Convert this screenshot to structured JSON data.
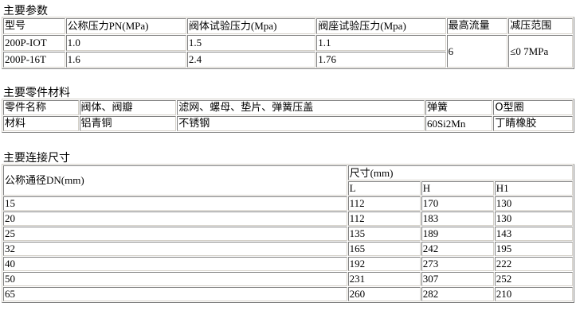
{
  "params": {
    "title": "主要参数",
    "headers": [
      "型号",
      "公称压力PN(MPa)",
      "阀体试验压力(Mpa)",
      "阀座试验压力(Mpa)",
      "最高流量",
      "减压范围"
    ],
    "rows": [
      [
        "200P-IOT",
        "1.0",
        "1.5",
        "1.1"
      ],
      [
        "200P-16T",
        "1.6",
        "2.4",
        "1.76"
      ]
    ],
    "max_flow": "6",
    "range": "≤0 7MPa"
  },
  "materials": {
    "title": "主要零件材料",
    "headers": [
      "零件名称",
      "阀体、阀瓣",
      "滤网、螺母、垫片、弹簧压盖",
      "弹簧",
      "O型圈"
    ],
    "row": [
      "材料",
      "铝青铜",
      "不锈钢",
      "60Si2Mn",
      "丁睛橡胶"
    ]
  },
  "dimensions": {
    "title": "主要连接尺寸",
    "dn_header": "公称通径DN(mm)",
    "size_header": "尺寸(mm)",
    "sub_headers": [
      "L",
      "H",
      "H1"
    ],
    "rows": [
      [
        "15",
        "112",
        "170",
        "130"
      ],
      [
        "20",
        "112",
        "183",
        "130"
      ],
      [
        "25",
        "135",
        "189",
        "143"
      ],
      [
        "32",
        "165",
        "242",
        "195"
      ],
      [
        "40",
        "192",
        "273",
        "222"
      ],
      [
        "50",
        "231",
        "307",
        "252"
      ],
      [
        "65",
        "260",
        "282",
        "210"
      ]
    ]
  }
}
